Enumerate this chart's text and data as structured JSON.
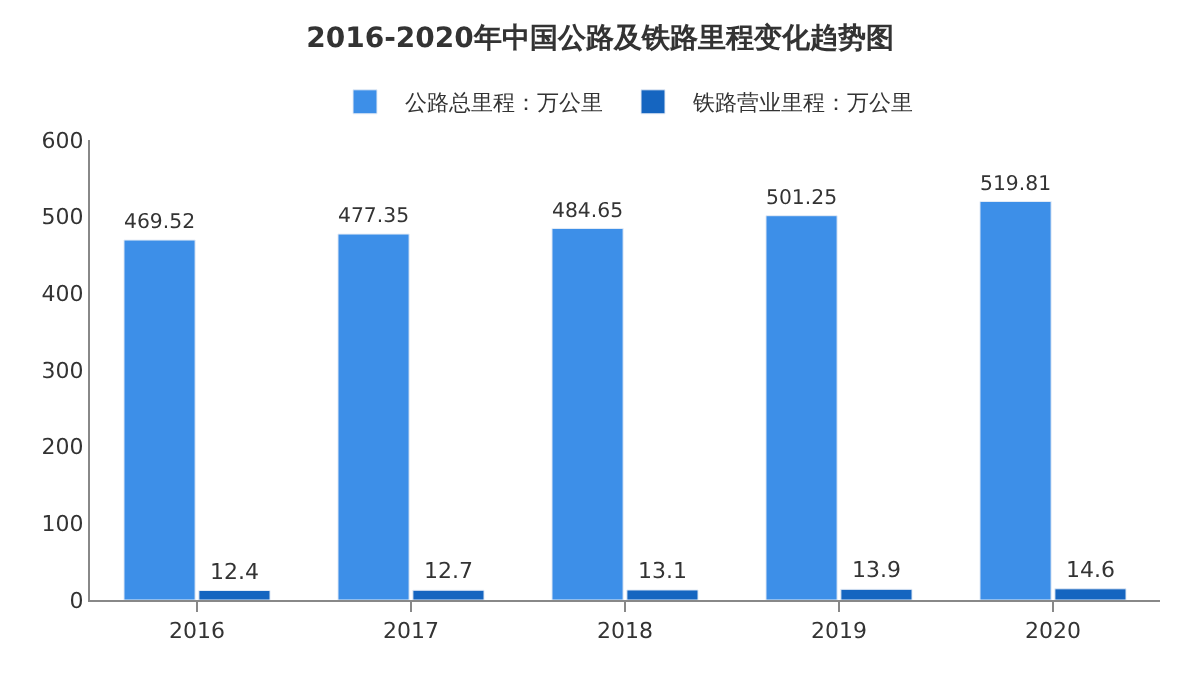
{
  "chart_data": {
    "type": "bar",
    "title": "2016-2020年中国公路及铁路里程变化趋势图",
    "categories": [
      "2016",
      "2017",
      "2018",
      "2019",
      "2020"
    ],
    "series": [
      {
        "name": "公路总里程：万公里",
        "color": "#3d8fe8",
        "values": [
          469.52,
          477.35,
          484.65,
          501.25,
          519.81
        ]
      },
      {
        "name": "铁路营业里程：万公里",
        "color": "#1565c0",
        "values": [
          12.4,
          12.7,
          13.1,
          13.9,
          14.6
        ]
      }
    ],
    "ylim": [
      0,
      600
    ],
    "yticks": [
      0,
      100,
      200,
      300,
      400,
      500,
      600
    ],
    "grid": false,
    "legend": "top",
    "data_labels": true
  }
}
